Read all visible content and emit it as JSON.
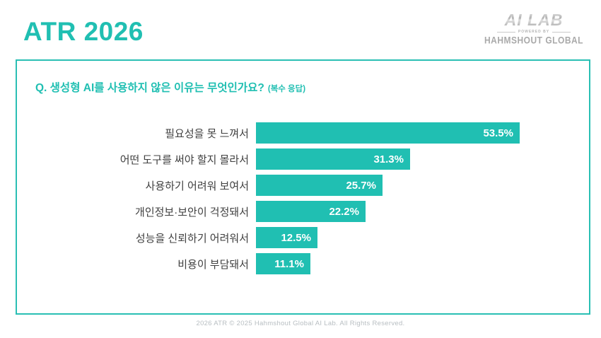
{
  "header": {
    "title": "ATR 2026",
    "logo": {
      "brand": "AI LAB",
      "powered_by": "POWERED BY",
      "company": "HAHMSHOUT GLOBAL"
    }
  },
  "panel": {
    "question": "Q. 생성형 AI를 사용하지 않은 이유는 무엇인가요?",
    "question_note": "(복수 응답)"
  },
  "chart_data": {
    "type": "bar",
    "orientation": "horizontal",
    "title": "Q. 생성형 AI를 사용하지 않은 이유는 무엇인가요? (복수 응답)",
    "categories": [
      "필요성을 못 느껴서",
      "어떤 도구를 써야 할지 몰라서",
      "사용하기 어려워 보여서",
      "개인정보·보안이 걱정돼서",
      "성능을 신뢰하기 어려워서",
      "비용이 부담돼서"
    ],
    "values": [
      53.5,
      31.3,
      25.7,
      22.2,
      12.5,
      11.1
    ],
    "value_suffix": "%",
    "xlabel": "",
    "ylabel": "",
    "xlim": [
      0,
      60
    ],
    "grid": false,
    "legend": false,
    "bar_color": "#20bfb2",
    "value_label_color": "#ffffff",
    "value_label_position": "inside-end"
  },
  "footer": {
    "copyright": "2026 ATR © 2025 Hahmshout Global AI Lab. All Rights Reserved."
  },
  "colors": {
    "accent": "#20bfb2",
    "panel_border": "#2abfb4",
    "category_text": "#404040",
    "footer_text": "#b8bec2",
    "logo_silver": "#c7c7c7",
    "logo_grey": "#a9a9a9"
  }
}
